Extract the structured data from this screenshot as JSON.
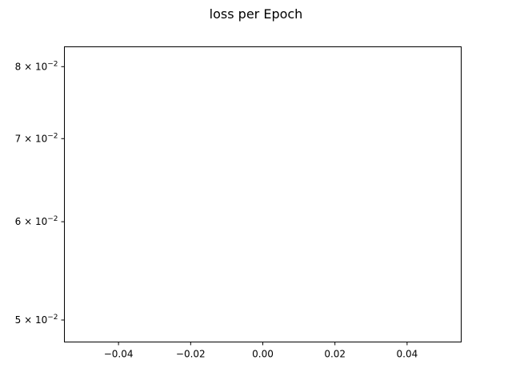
{
  "chart_data": {
    "type": "line",
    "title": "loss per Epoch",
    "xlabel": "",
    "ylabel": "",
    "xscale": "linear",
    "yscale": "log",
    "xlim": [
      -0.055,
      0.055
    ],
    "ylim": [
      0.048,
      0.083
    ],
    "x_ticks": [
      {
        "value": -0.04,
        "label": "−0.04"
      },
      {
        "value": -0.02,
        "label": "−0.02"
      },
      {
        "value": 0.0,
        "label": "0.00"
      },
      {
        "value": 0.02,
        "label": "0.02"
      },
      {
        "value": 0.04,
        "label": "0.04"
      }
    ],
    "y_ticks": [
      {
        "value": 0.05,
        "mantissa": "5",
        "exponent": "−2"
      },
      {
        "value": 0.06,
        "mantissa": "6",
        "exponent": "−2"
      },
      {
        "value": 0.07,
        "mantissa": "7",
        "exponent": "−2"
      },
      {
        "value": 0.08,
        "mantissa": "8",
        "exponent": "−2"
      }
    ],
    "series": [
      {
        "x": [],
        "y": []
      }
    ],
    "grid": false,
    "legend": "none"
  },
  "style": {
    "axis_color": "#000000",
    "text_color": "#000000",
    "background": "#ffffff"
  }
}
